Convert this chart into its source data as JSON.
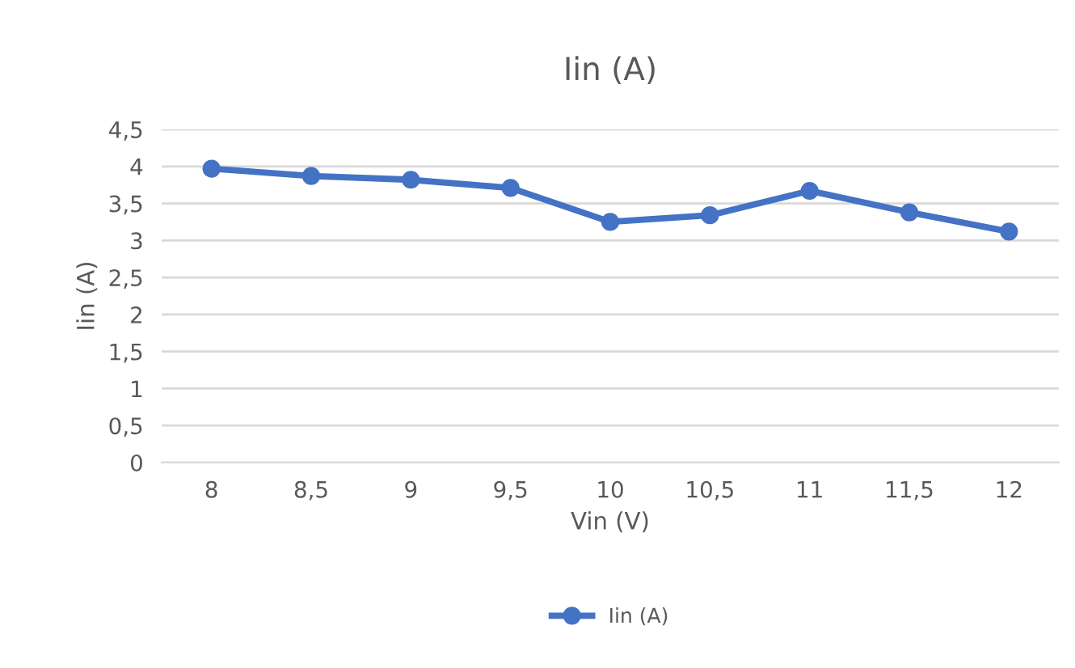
{
  "chart_data": {
    "type": "line",
    "title": "Iin (A)",
    "xlabel": "Vin (V)",
    "ylabel": "Iin (A)",
    "categories": [
      "8",
      "8,5",
      "9",
      "9,5",
      "10",
      "10,5",
      "11",
      "11,5",
      "12"
    ],
    "series": [
      {
        "name": "Iin (A)",
        "color": "#4472c4",
        "values": [
          3.97,
          3.87,
          3.82,
          3.71,
          3.25,
          3.34,
          3.67,
          3.38,
          3.12
        ]
      }
    ],
    "ylim": [
      0,
      4.5
    ],
    "yticks": [
      0,
      {
        "value": 0.5,
        "label": "0,5"
      },
      1,
      {
        "value": 1.5,
        "label": "1,5"
      },
      2,
      {
        "value": 2.5,
        "label": "2,5"
      },
      3,
      {
        "value": 3.5,
        "label": "3,5"
      },
      4,
      {
        "value": 4.5,
        "label": "4,5"
      }
    ],
    "grid": "y",
    "legend": "bottom",
    "marker": "circle",
    "line_style": "solid"
  }
}
